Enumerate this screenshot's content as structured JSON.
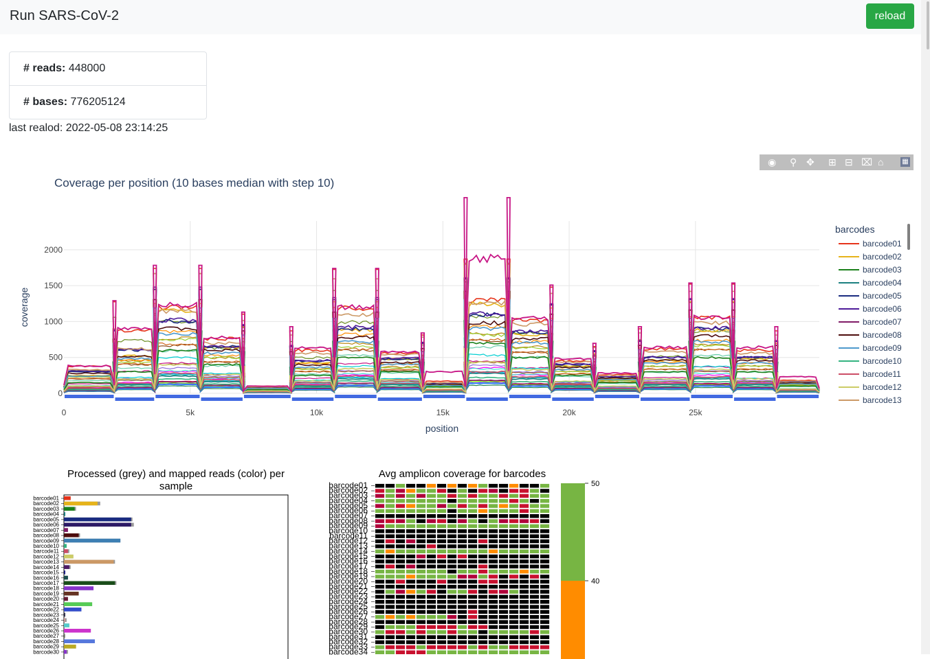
{
  "navbar": {
    "title": "Run SARS-CoV-2",
    "reload_label": "reload"
  },
  "stats": {
    "reads_label": "# reads:",
    "reads_value": "448000",
    "bases_label": "# bases:",
    "bases_value": "776205124",
    "last_reload": "last realod: 2022-05-08 23:14:25"
  },
  "modebar": {
    "icons": [
      "camera-icon",
      "zoom-icon",
      "pan-icon",
      "zoom-in-icon",
      "zoom-out-icon",
      "autoscale-icon",
      "home-icon",
      "plotly-logo-icon"
    ]
  },
  "coverage": {
    "chart_data": {
      "type": "line",
      "title": "Coverage per position (10 bases median with step 10)",
      "xlabel": "position",
      "ylabel": "coverage",
      "xlim": [
        0,
        29903
      ],
      "ylim": [
        0,
        2400
      ],
      "xticks": [
        0,
        5000,
        10000,
        15000,
        20000,
        25000
      ],
      "xtick_labels": [
        "0",
        "5k",
        "10k",
        "15k",
        "20k",
        "25k"
      ],
      "yticks": [
        0,
        500,
        1000,
        1500,
        2000
      ],
      "ytick_labels": [
        "0",
        "500",
        "1000",
        "1500",
        "2000"
      ],
      "legend_title": "barcodes",
      "legend_placement": "right",
      "amplicon_bounds": [
        0,
        2000,
        3600,
        5400,
        7100,
        9000,
        10700,
        12400,
        14200,
        15900,
        17600,
        19300,
        21000,
        22800,
        24800,
        26500,
        28200,
        29903
      ],
      "series": [
        {
          "name": "barcode01",
          "color": "#e6331a",
          "levels": [
            380,
            880,
            1200,
            760,
            100,
            600,
            1190,
            560,
            170,
            1290,
            1020,
            450,
            260,
            620,
            1050,
            600,
            180,
            250,
            320,
            340
          ]
        },
        {
          "name": "barcode02",
          "color": "#e6b31a",
          "levels": [
            250,
            520,
            1150,
            640,
            80,
            420,
            880,
            480,
            130,
            1240,
            820,
            380,
            200,
            460,
            880,
            480,
            150,
            220,
            1080,
            920
          ]
        },
        {
          "name": "barcode03",
          "color": "#1a801a",
          "levels": [
            150,
            300,
            600,
            400,
            50,
            250,
            500,
            300,
            90,
            700,
            500,
            250,
            150,
            300,
            500,
            300,
            100,
            150,
            200,
            400
          ]
        },
        {
          "name": "barcode04",
          "color": "#1a8080",
          "levels": [
            60,
            120,
            240,
            160,
            20,
            100,
            200,
            120,
            40,
            280,
            200,
            100,
            60,
            120,
            200,
            120,
            40,
            60,
            80,
            160
          ]
        },
        {
          "name": "barcode05",
          "color": "#1a2b80",
          "levels": [
            300,
            600,
            1000,
            650,
            90,
            450,
            900,
            480,
            140,
            1100,
            850,
            400,
            230,
            500,
            900,
            500,
            160,
            230,
            870,
            850
          ]
        },
        {
          "name": "barcode06",
          "color": "#4d1a99",
          "levels": [
            310,
            610,
            1020,
            660,
            95,
            460,
            920,
            490,
            145,
            1110,
            860,
            410,
            235,
            505,
            910,
            505,
            165,
            235,
            880,
            860
          ]
        },
        {
          "name": "barcode07",
          "color": "#801a66",
          "levels": [
            40,
            80,
            160,
            110,
            15,
            70,
            140,
            80,
            25,
            180,
            130,
            70,
            40,
            80,
            130,
            80,
            25,
            40,
            60,
            110
          ]
        },
        {
          "name": "barcode08",
          "color": "#4d0d0d",
          "levels": [
            280,
            520,
            900,
            600,
            80,
            400,
            780,
            430,
            120,
            980,
            760,
            360,
            210,
            460,
            800,
            460,
            140,
            210,
            330,
            420
          ]
        },
        {
          "name": "barcode09",
          "color": "#4d99cc",
          "levels": [
            240,
            480,
            820,
            560,
            70,
            360,
            720,
            400,
            110,
            900,
            700,
            330,
            190,
            420,
            720,
            420,
            130,
            190,
            300,
            380
          ]
        },
        {
          "name": "barcode10",
          "color": "#33b380",
          "levels": [
            50,
            100,
            200,
            130,
            18,
            85,
            170,
            100,
            30,
            220,
            160,
            85,
            50,
            100,
            160,
            100,
            30,
            50,
            70,
            130
          ]
        },
        {
          "name": "barcode11",
          "color": "#cc4d66",
          "levels": [
            70,
            140,
            280,
            190,
            25,
            120,
            240,
            140,
            45,
            300,
            230,
            120,
            70,
            140,
            230,
            140,
            45,
            70,
            100,
            190
          ]
        },
        {
          "name": "barcode12",
          "color": "#cccc66",
          "levels": [
            100,
            200,
            400,
            260,
            35,
            170,
            340,
            190,
            60,
            430,
            330,
            170,
            100,
            200,
            330,
            200,
            60,
            100,
            140,
            260
          ]
        },
        {
          "name": "barcode13",
          "color": "#cc9966",
          "levels": [
            330,
            620,
            1150,
            700,
            90,
            560,
            1100,
            540,
            150,
            1250,
            960,
            440,
            250,
            580,
            980,
            560,
            170,
            240,
            300,
            560
          ]
        }
      ],
      "extra_series_colors": [
        "#c71585",
        "#00ced1",
        "#ff00ff",
        "#7cfc00",
        "#8b4513",
        "#b8860b",
        "#4169e1",
        "#40e0d0",
        "#9370db",
        "#2e8b57",
        "#dc143c",
        "#00bfff",
        "#ff8c00",
        "#6b8e23",
        "#a0522d",
        "#20b2aa",
        "#8a2be2",
        "#66cdaa",
        "#d2691e",
        "#1e90ff",
        "#9acd32"
      ],
      "peak_series": {
        "color": "#c71585",
        "levels": [
          380,
          890,
          1230,
          780,
          100,
          640,
          1200,
          580,
          300,
          1880,
          1040,
          480,
          280,
          640,
          1060,
          640,
          230,
          300,
          360,
          900
        ]
      }
    }
  },
  "reads_chart": {
    "chart_data": {
      "type": "bar",
      "title": "Processed (grey) and mapped reads (color) per sample",
      "categories": [
        "barcode01",
        "barcode02",
        "barcode03",
        "barcode04",
        "barcode05",
        "barcode06",
        "barcode07",
        "barcode08",
        "barcode09",
        "barcode10",
        "barcode11",
        "barcode12",
        "barcode13",
        "barcode14",
        "barcode15",
        "barcode16",
        "barcode17",
        "barcode18",
        "barcode19",
        "barcode20",
        "barcode21",
        "barcode22",
        "barcode23",
        "barcode24",
        "barcode25",
        "barcode26",
        "barcode27",
        "barcode28",
        "barcode29",
        "barcode30"
      ],
      "xlim": [
        0,
        100
      ],
      "processed": [
        5,
        27,
        9,
        1,
        51,
        52,
        3,
        12,
        42,
        2,
        4,
        7,
        38,
        5,
        1,
        3,
        39,
        22,
        11,
        3,
        21,
        13,
        1,
        2,
        4,
        20,
        1,
        23,
        9,
        3
      ],
      "mapped": [
        5,
        25,
        8,
        1,
        50,
        50,
        3,
        11,
        42,
        2,
        3,
        7,
        37,
        4,
        1,
        3,
        38,
        22,
        11,
        3,
        21,
        13,
        1,
        1,
        4,
        20,
        0,
        23,
        9,
        2
      ],
      "colors": [
        "#e6331a",
        "#e6b31a",
        "#1a801a",
        "#1a8080",
        "#1a2b80",
        "#2d1a66",
        "#801a66",
        "#4d0d0d",
        "#3d7fb3",
        "#33b380",
        "#cc4d66",
        "#cccc66",
        "#cc9966",
        "#4d1a66",
        "#1a1a80",
        "#1a4d4d",
        "#1a4d1a",
        "#8833cc",
        "#663322",
        "#661a33",
        "#55cc55",
        "#334dcc",
        "#33334d",
        "#cc9999",
        "#55cccc",
        "#cc33cc",
        "#334d1a",
        "#5577dd",
        "#bbaa22",
        "#8833cc"
      ]
    }
  },
  "heatmap": {
    "chart_data": {
      "type": "heatmap",
      "title": "Avg amplicon coverage for barcodes",
      "rows": [
        "barcode01",
        "barcode02",
        "barcode03",
        "barcode04",
        "barcode05",
        "barcode06",
        "barcode07",
        "barcode08",
        "barcode09",
        "barcode10",
        "barcode11",
        "barcode12",
        "barcode13",
        "barcode14",
        "barcode15",
        "barcode16",
        "barcode17",
        "barcode18",
        "barcode19",
        "barcode20",
        "barcode21",
        "barcode22",
        "barcode23",
        "barcode24",
        "barcode25",
        "barcode26",
        "barcode27",
        "barcode28",
        "barcode29",
        "barcode30",
        "barcode31",
        "barcode32",
        "barcode33",
        "barcode34"
      ],
      "n_columns": 17,
      "colorbar_ticks": [
        "50",
        "40"
      ],
      "colors": [
        "#000000",
        "#c8102e",
        "#b0003a",
        "#ff8c00",
        "#77b543"
      ],
      "cells": [
        "00400303034003004",
        "14234410401201140",
        "24242441414414144",
        "44444440444441404",
        "24134424141434144",
        "44444440443444144",
        "00000000000000000",
        "21240210240421210",
        "24444444444444444",
        "00000000000000000",
        "00000000000000000",
        "01020000001000000",
        "00000100000000000",
        "43444444444344444",
        "00002010100000000",
        "00000000000000000",
        "01020000001000000",
        "44444440441444344",
        "44434444224101010",
        "00100010001100000",
        "00000000000000000",
        "04234104410124000",
        "00000000000000000",
        "00000000000000000",
        "00000000000000000",
        "00000000010000000",
        "43434442010000000",
        "00000000000000000",
        "04441111411000000",
        "41141441440444414",
        "00000000000000000",
        "00000000000000000",
        "41114111141441111",
        "44111444444444444"
      ]
    }
  }
}
